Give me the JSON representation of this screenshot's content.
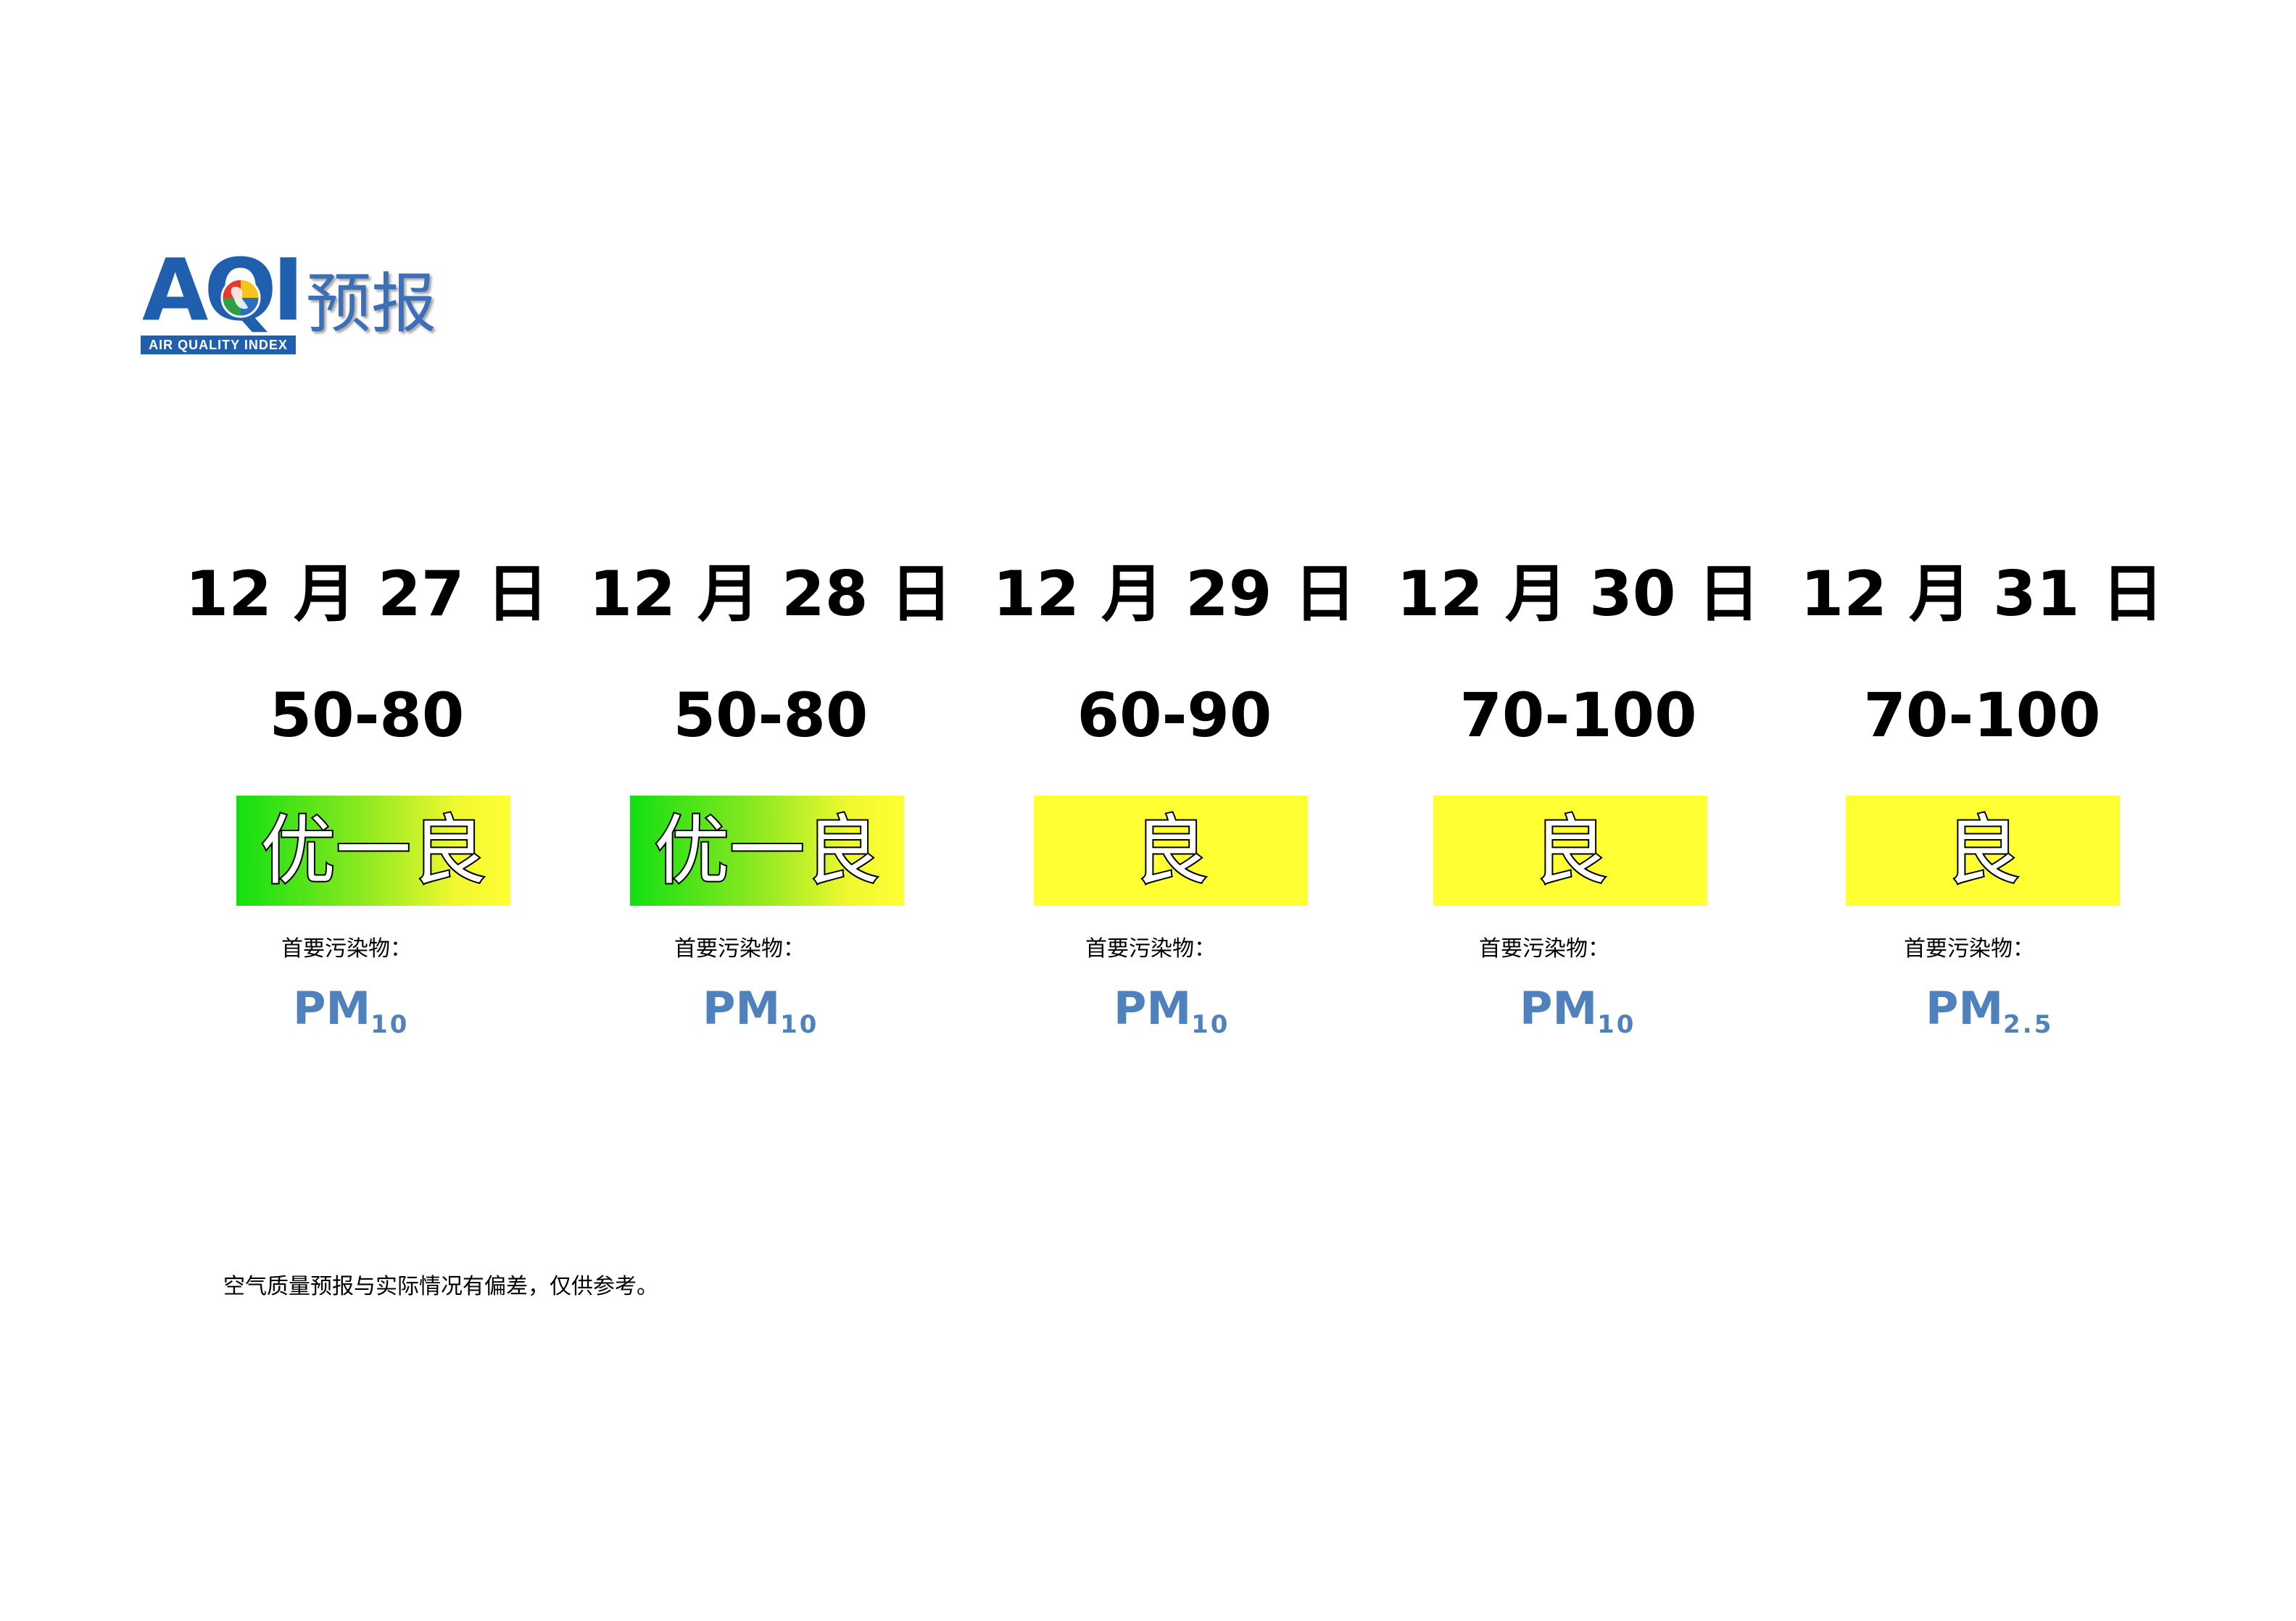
{
  "logo": {
    "letters": "AQI",
    "tagline": "AIR QUALITY INDEX",
    "title": "预报",
    "icon": "globe-icon"
  },
  "pollutant_label": "首要污染物：",
  "days": [
    {
      "date": "12 月 27 日",
      "range": "50-80",
      "level": "优一良",
      "fill": "gradient",
      "pollutant": {
        "main": "PM",
        "sub": "10"
      }
    },
    {
      "date": "12 月 28 日",
      "range": "50-80",
      "level": "优一良",
      "fill": "gradient",
      "pollutant": {
        "main": "PM",
        "sub": "10"
      }
    },
    {
      "date": "12 月 29 日",
      "range": "60-90",
      "level": "良",
      "fill": "yellow",
      "pollutant": {
        "main": "PM",
        "sub": "10"
      }
    },
    {
      "date": "12 月 30 日",
      "range": "70-100",
      "level": "良",
      "fill": "yellow",
      "pollutant": {
        "main": "PM",
        "sub": "10"
      }
    },
    {
      "date": "12 月 31 日",
      "range": "70-100",
      "level": "良",
      "fill": "yellow",
      "pollutant": {
        "main": "PM",
        "sub": "2.5"
      }
    }
  ],
  "colors": {
    "excellent": "#12df12",
    "good": "#ffff33",
    "brand": "#1f5fae",
    "pollutant_text": "#4f81bd"
  },
  "note": "空气质量预报与实际情况有偏差，仅供参考。"
}
